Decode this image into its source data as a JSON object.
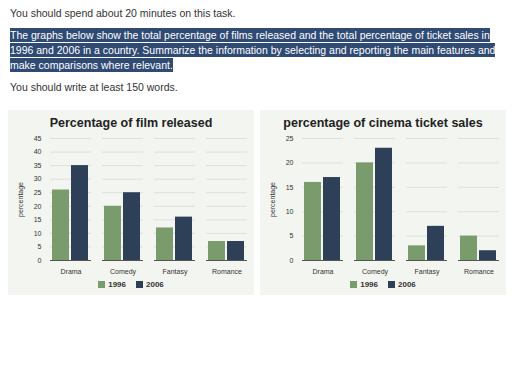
{
  "instructions": {
    "time": "You should spend about 20 minutes on this task.",
    "prompt": "The graphs below show the total percentage of films released and the total percentage of ticket sales in 1996 and 2006 in a country. Summarize the information by selecting and reporting the main features and make comparisons where relevant.",
    "length": "You should write at least 150 words."
  },
  "chart_data": [
    {
      "type": "bar",
      "title": "Percentage of film released",
      "ylabel": "percentage",
      "categories": [
        "Drama",
        "Comedy",
        "Fantasy",
        "Romance"
      ],
      "series": [
        {
          "name": "1996",
          "color": "#7a9b6c",
          "values": [
            26,
            20,
            12,
            7
          ]
        },
        {
          "name": "2006",
          "color": "#2e3f58",
          "values": [
            35,
            25,
            16,
            7
          ]
        }
      ],
      "ylim": [
        0,
        45
      ],
      "yticks": [
        0,
        5,
        10,
        15,
        20,
        25,
        30,
        35,
        40,
        45
      ],
      "grid": true,
      "legend": "bottom"
    },
    {
      "type": "bar",
      "title": "percentage of cinema ticket sales",
      "ylabel": "percentage",
      "categories": [
        "Drama",
        "Comedy",
        "Fantasy",
        "Romance"
      ],
      "series": [
        {
          "name": "1996",
          "color": "#7a9b6c",
          "values": [
            16,
            20,
            3,
            5
          ]
        },
        {
          "name": "2006",
          "color": "#2e3f58",
          "values": [
            17,
            23,
            7,
            2
          ]
        }
      ],
      "ylim": [
        0,
        25
      ],
      "yticks": [
        0,
        5,
        10,
        15,
        20,
        25
      ],
      "grid": true,
      "legend": "bottom"
    }
  ]
}
